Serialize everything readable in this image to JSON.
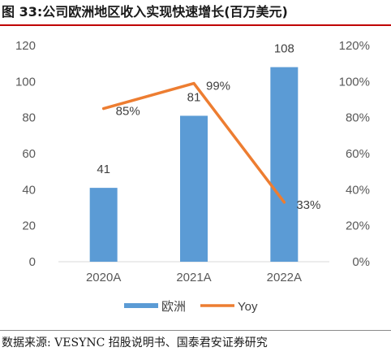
{
  "header": {
    "title": "图 33:公司欧洲地区收入实现快速增长(百万美元)"
  },
  "footer": {
    "source": "数据来源: VESYNC 招股说明书、国泰君安证券研究"
  },
  "colors": {
    "bar": "#5b9bd5",
    "line": "#ed7d31",
    "rule": "#c00000"
  },
  "chart_data": {
    "type": "bar",
    "categories": [
      "2020A",
      "2021A",
      "2022A"
    ],
    "series": [
      {
        "name": "欧洲",
        "type": "bar",
        "axis": "left",
        "values": [
          41,
          81,
          108
        ],
        "labels": [
          "41",
          "81",
          "108"
        ]
      },
      {
        "name": "Yoy",
        "type": "line",
        "axis": "right",
        "values": [
          85,
          99,
          33
        ],
        "labels": [
          "85%",
          "99%",
          "33%"
        ]
      }
    ],
    "y_left": {
      "min": 0,
      "max": 120,
      "ticks": [
        "0",
        "20",
        "40",
        "60",
        "80",
        "100",
        "120"
      ]
    },
    "y_right": {
      "min": 0,
      "max": 120,
      "ticks": [
        "0%",
        "20%",
        "40%",
        "60%",
        "80%",
        "100%",
        "120%"
      ]
    },
    "grid": false,
    "legend_position": "bottom",
    "title": "",
    "xlabel": "",
    "ylabel": ""
  }
}
